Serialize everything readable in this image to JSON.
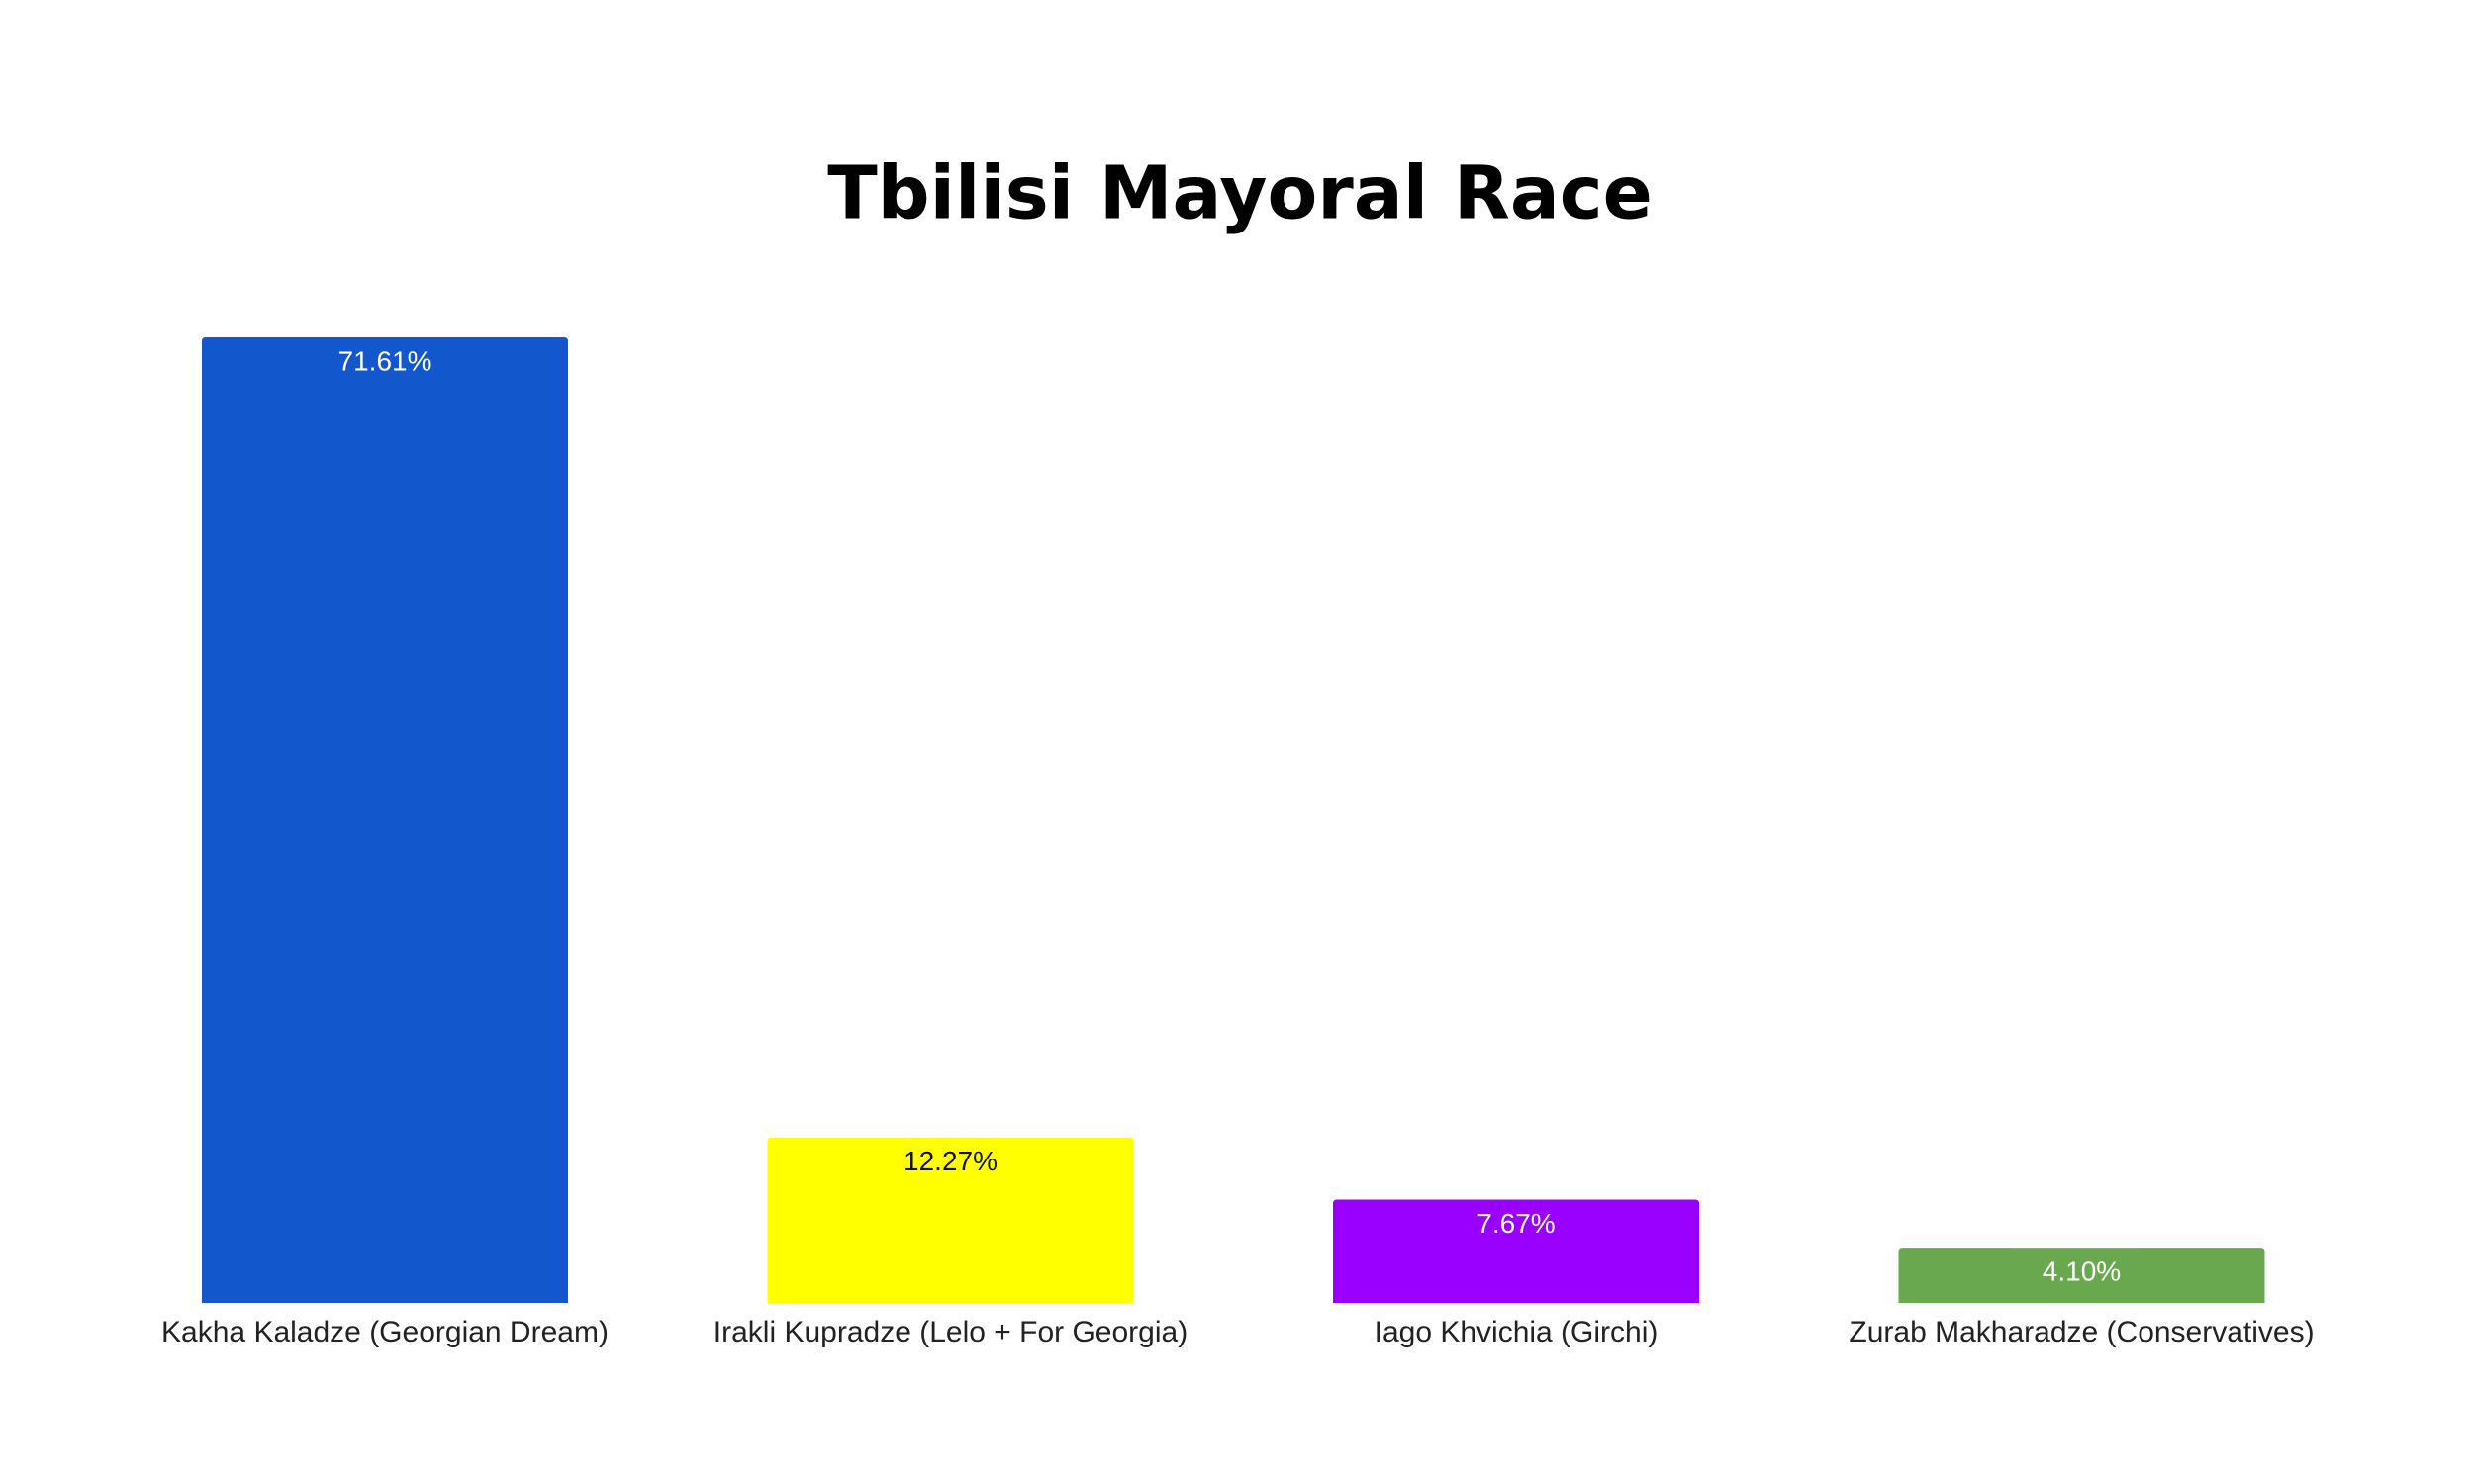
{
  "chart_data": {
    "type": "bar",
    "title": "Tbilisi Mayoral Race",
    "categories": [
      "Kakha Kaladze (Georgian Dream)",
      "Irakli Kupradze (Lelo + For Georgia)",
      "Iago Khvichia (Girchi)",
      "Zurab Makharadze (Conservatives)"
    ],
    "values": [
      71.61,
      12.27,
      7.67,
      4.1
    ],
    "value_labels": [
      "71.61%",
      "12.27%",
      "7.67%",
      "4.10%"
    ],
    "colors": [
      "#1357cc",
      "#ffff00",
      "#9900ff",
      "#6aa84f"
    ]
  }
}
